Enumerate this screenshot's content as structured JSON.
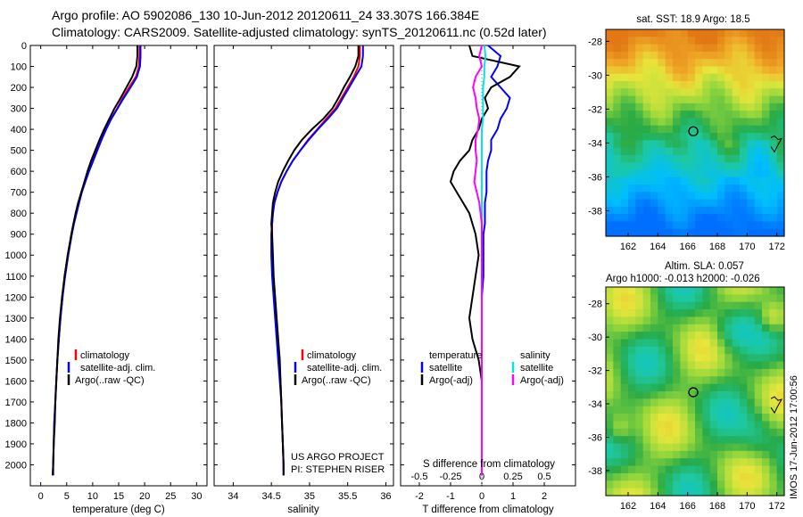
{
  "header": {
    "title_line1": "Argo profile: AO 5902086_130 10-Jun-2012 20120611_24 33.307S 166.384E",
    "title_line2": "Climatology: CARS2009. Satellite-adjusted climatology: synTS_20120611.nc (0.52d later)"
  },
  "project_credit": {
    "line1": "US ARGO PROJECT",
    "line2": "PI: STEPHEN RISER"
  },
  "timestamp": "IMOS 17-Jun-2012 17:00:56",
  "colors": {
    "climatology": "#ff0000",
    "satellite": "#0000ff",
    "argo": "#000000",
    "salinity_sat": "#00e5e5",
    "salinity_argo": "#ff00ff"
  },
  "chart_data": [
    {
      "id": "temperature-profile",
      "type": "line",
      "xlabel": "temperature (deg C)",
      "ylabel": "",
      "xlim": [
        -2,
        32
      ],
      "ylim": [
        2100,
        0
      ],
      "xticks": [
        0,
        5,
        10,
        15,
        20,
        25,
        30
      ],
      "yticks": [
        0,
        100,
        200,
        300,
        400,
        500,
        600,
        700,
        800,
        900,
        1000,
        1100,
        1200,
        1300,
        1400,
        1500,
        1600,
        1700,
        1800,
        1900,
        2000
      ],
      "legend": [
        "climatology",
        "satellite-adj. clim.",
        "Argo(..raw -QC)"
      ],
      "depth": [
        0,
        50,
        100,
        150,
        200,
        250,
        300,
        350,
        400,
        450,
        500,
        550,
        600,
        650,
        700,
        750,
        800,
        850,
        900,
        1000,
        1100,
        1200,
        1300,
        1400,
        1500,
        1600,
        1700,
        1800,
        1900,
        2000,
        2050
      ],
      "series": [
        {
          "name": "climatology",
          "color": "#ff0000",
          "values": [
            19.0,
            19.0,
            18.9,
            18.3,
            17.0,
            15.8,
            14.7,
            13.5,
            12.5,
            11.6,
            10.8,
            10.0,
            9.2,
            8.5,
            7.8,
            7.3,
            6.8,
            6.3,
            5.9,
            5.2,
            4.6,
            4.2,
            3.8,
            3.5,
            3.2,
            3.0,
            2.8,
            2.6,
            2.5,
            2.4,
            2.3
          ]
        },
        {
          "name": "satellite",
          "color": "#0000ff",
          "values": [
            19.2,
            19.2,
            19.1,
            18.5,
            17.3,
            16.0,
            14.8,
            13.6,
            12.6,
            11.7,
            10.9,
            10.1,
            9.3,
            8.6,
            7.9,
            7.4,
            6.9,
            6.4,
            6.0,
            5.3,
            4.7,
            4.2,
            3.8,
            3.5,
            3.2,
            3.0,
            2.8,
            2.6,
            2.5,
            2.4,
            2.3
          ]
        },
        {
          "name": "Argo",
          "color": "#000000",
          "values": [
            18.6,
            18.6,
            18.4,
            17.6,
            16.5,
            15.4,
            14.2,
            13.2,
            12.2,
            11.3,
            10.5,
            9.7,
            9.0,
            8.4,
            7.8,
            7.2,
            6.7,
            6.3,
            5.9,
            5.2,
            4.6,
            4.1,
            3.7,
            3.4,
            3.2,
            3.0,
            2.8,
            2.7,
            2.5,
            2.4,
            2.4
          ]
        }
      ]
    },
    {
      "id": "salinity-profile",
      "type": "line",
      "xlabel": "salinity",
      "xlim": [
        33.75,
        36.1
      ],
      "ylim": [
        2100,
        0
      ],
      "xticks": [
        34,
        34.5,
        35,
        35.5,
        36
      ],
      "legend": [
        "climatology",
        "satellite-adj. clim.",
        "Argo(..raw -QC)"
      ],
      "depth": [
        0,
        50,
        100,
        150,
        200,
        250,
        300,
        350,
        400,
        450,
        500,
        550,
        600,
        650,
        700,
        750,
        800,
        850,
        900,
        1000,
        1100,
        1200,
        1300,
        1400,
        1500,
        1600,
        1700,
        1800,
        1900,
        2000,
        2050
      ],
      "series": [
        {
          "name": "climatology",
          "color": "#ff0000",
          "values": [
            35.66,
            35.66,
            35.64,
            35.58,
            35.5,
            35.42,
            35.34,
            35.22,
            35.1,
            34.98,
            34.88,
            34.78,
            34.7,
            34.63,
            34.58,
            34.54,
            34.52,
            34.51,
            34.51,
            34.51,
            34.52,
            34.54,
            34.56,
            34.58,
            34.6,
            34.62,
            34.63,
            34.64,
            34.65,
            34.66,
            34.66
          ]
        },
        {
          "name": "satellite",
          "color": "#0000ff",
          "values": [
            35.7,
            35.7,
            35.68,
            35.6,
            35.52,
            35.44,
            35.36,
            35.24,
            35.11,
            34.99,
            34.88,
            34.78,
            34.7,
            34.63,
            34.58,
            34.54,
            34.52,
            34.51,
            34.5,
            34.5,
            34.51,
            34.53,
            34.55,
            34.57,
            34.59,
            34.61,
            34.63,
            34.64,
            34.65,
            34.66,
            34.66
          ]
        },
        {
          "name": "Argo",
          "color": "#000000",
          "values": [
            35.64,
            35.64,
            35.6,
            35.53,
            35.45,
            35.38,
            35.3,
            35.18,
            35.03,
            34.9,
            34.8,
            34.72,
            34.65,
            34.59,
            34.55,
            34.52,
            34.51,
            34.5,
            34.51,
            34.52,
            34.53,
            34.55,
            34.57,
            34.59,
            34.61,
            34.62,
            34.63,
            34.64,
            34.65,
            34.66,
            34.66
          ]
        }
      ]
    },
    {
      "id": "difference-profile",
      "type": "line",
      "xlabel": "T difference from climatology",
      "xlabel_top": "S difference from climatology",
      "xlim": [
        -2.6,
        3.0
      ],
      "ylim": [
        2100,
        0
      ],
      "xticks": [
        -2,
        -1,
        0,
        1,
        2
      ],
      "xticks_s": [
        -0.5,
        -0.25,
        0,
        0.25,
        0.5
      ],
      "xticks_s_labels": [
        "-0.5",
        "-0.25",
        "0",
        "0.25",
        "0.5"
      ],
      "legend": {
        "temperature_heading": "temperature",
        "salinity_heading": "salinity",
        "sat_label": "satellite",
        "argo_label": "Argo(-adj)"
      },
      "depth": [
        0,
        50,
        100,
        150,
        200,
        250,
        300,
        350,
        400,
        450,
        500,
        550,
        600,
        650,
        700,
        750,
        800,
        850,
        900,
        1000,
        1100,
        1200,
        1300,
        1400,
        1500,
        1600,
        1700,
        1800,
        1900,
        2000,
        2050
      ],
      "series": [
        {
          "name": "temperature satellite",
          "color": "#0000ff",
          "values": [
            0.2,
            0.6,
            0.5,
            0.3,
            0.6,
            0.9,
            0.8,
            0.6,
            0.5,
            0.3,
            0.3,
            0.2,
            0.15,
            0.15,
            0.15,
            0.1,
            0.1,
            0.1,
            0.05,
            0.05,
            0.05,
            0.0,
            0.0,
            0.0,
            0.0,
            0.0,
            0.0,
            0.0,
            0.0,
            0.0,
            0.0
          ]
        },
        {
          "name": "temperature Argo",
          "color": "#000000",
          "values": [
            -0.4,
            -0.3,
            1.2,
            0.9,
            0.3,
            0.1,
            0.2,
            0.0,
            -0.1,
            -0.3,
            -0.4,
            -0.7,
            -0.9,
            -1.0,
            -0.8,
            -0.6,
            -0.4,
            -0.3,
            -0.2,
            -0.1,
            -0.2,
            -0.3,
            -0.4,
            -0.3,
            -0.1,
            0.0,
            0.0,
            0.0,
            0.0,
            0.0,
            0.0
          ]
        },
        {
          "name": "salinity satellite",
          "color": "#00e5e5",
          "values": [
            0.02,
            0.03,
            0.02,
            0.02,
            0.01,
            0.01,
            0.01,
            0.01,
            0.0,
            0.0,
            0.0,
            0.0,
            0.0,
            0.0,
            0.0,
            0.0,
            0.0,
            0.0,
            0.0,
            0.0,
            0.0,
            0.0,
            0.0,
            0.0,
            0.0,
            0.0,
            0.0,
            0.0,
            0.0,
            0.0,
            0.0
          ]
        },
        {
          "name": "salinity Argo",
          "color": "#ff00ff",
          "values": [
            0.0,
            -0.02,
            0.0,
            -0.05,
            -0.07,
            -0.05,
            -0.04,
            -0.02,
            -0.03,
            -0.05,
            -0.05,
            -0.04,
            -0.05,
            -0.06,
            -0.04,
            -0.02,
            -0.01,
            0.0,
            0.0,
            0.0,
            0.0,
            0.0,
            0.0,
            0.0,
            0.0,
            0.0,
            0.0,
            0.0,
            0.0,
            0.0,
            0.0
          ]
        }
      ]
    },
    {
      "id": "sst-map",
      "type": "heatmap",
      "title": "sat. SST: 18.9 Argo: 18.5",
      "xlim": [
        160.5,
        172.5
      ],
      "ylim": [
        -39.5,
        -27.3
      ],
      "xticks": [
        162,
        164,
        166,
        168,
        170,
        172
      ],
      "yticks": [
        -28,
        -30,
        -32,
        -34,
        -36,
        -38
      ],
      "marker": {
        "lon": 166.384,
        "lat": -33.307
      }
    },
    {
      "id": "sla-map",
      "type": "heatmap",
      "title_line1": "Altim. SLA: 0.057",
      "title_line2": "Argo h1000: -0.013 h2000: -0.026",
      "xlim": [
        160.5,
        172.5
      ],
      "ylim": [
        -39.5,
        -27.0
      ],
      "xticks": [
        162,
        164,
        166,
        168,
        170,
        172
      ],
      "yticks": [
        -28,
        -30,
        -32,
        -34,
        -36,
        -38
      ],
      "marker": {
        "lon": 166.384,
        "lat": -33.307
      }
    }
  ]
}
